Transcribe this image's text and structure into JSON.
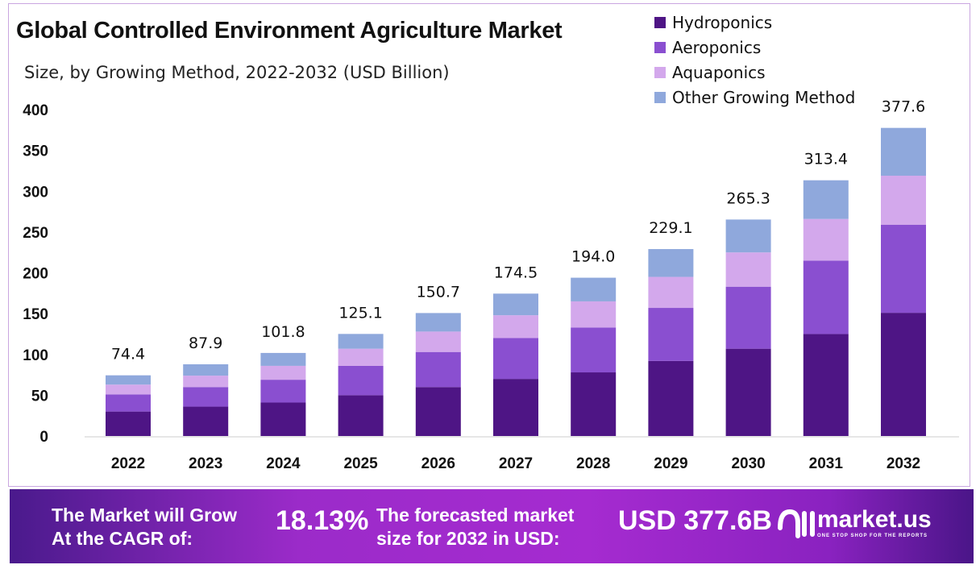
{
  "chart_data": {
    "type": "bar",
    "stacked": true,
    "title": "Global Controlled Environment Agriculture Market",
    "subtitle": "Size, by Growing Method, 2022-2032 (USD Billion)",
    "xlabel": "",
    "ylabel": "",
    "ylim": [
      0,
      400
    ],
    "yticks": [
      0,
      50,
      100,
      150,
      200,
      250,
      300,
      350,
      400
    ],
    "grid": false,
    "legend_position": "top-right",
    "categories": [
      "2022",
      "2023",
      "2024",
      "2025",
      "2026",
      "2027",
      "2028",
      "2029",
      "2030",
      "2031",
      "2032"
    ],
    "totals": [
      "74.4",
      "87.9",
      "101.8",
      "125.1",
      "150.7",
      "174.5",
      "194.0",
      "229.1",
      "265.3",
      "313.4",
      "377.6"
    ],
    "series": [
      {
        "name": "Hydroponics",
        "color": "#4e1585",
        "values": [
          30,
          36,
          41,
          50,
          60,
          70,
          78,
          92,
          107,
          125,
          151
        ]
      },
      {
        "name": "Aeroponics",
        "color": "#8a4fd0",
        "values": [
          21,
          24,
          28,
          36,
          43,
          50,
          55,
          65,
          76,
          90,
          108
        ]
      },
      {
        "name": "Aquaponics",
        "color": "#d3a8ec",
        "values": [
          12,
          14,
          17,
          21,
          25,
          28,
          32,
          38,
          42,
          51,
          60
        ]
      },
      {
        "name": "Other Growing Method",
        "color": "#8fa8dc",
        "values": [
          11.4,
          13.9,
          15.8,
          18.1,
          22.7,
          26.5,
          29.0,
          34.1,
          40.3,
          47.4,
          58.6
        ]
      }
    ]
  },
  "banner": {
    "cagr_label_1": "The Market will Grow",
    "cagr_label_2": "At the CAGR of:",
    "cagr_value": "18.13%",
    "forecast_label_1": "The forecasted market",
    "forecast_label_2": "size for 2032 in USD:",
    "forecast_value": "USD 377.6B",
    "logo_text": "market.us",
    "logo_tagline": "ONE STOP SHOP FOR THE REPORTS"
  }
}
